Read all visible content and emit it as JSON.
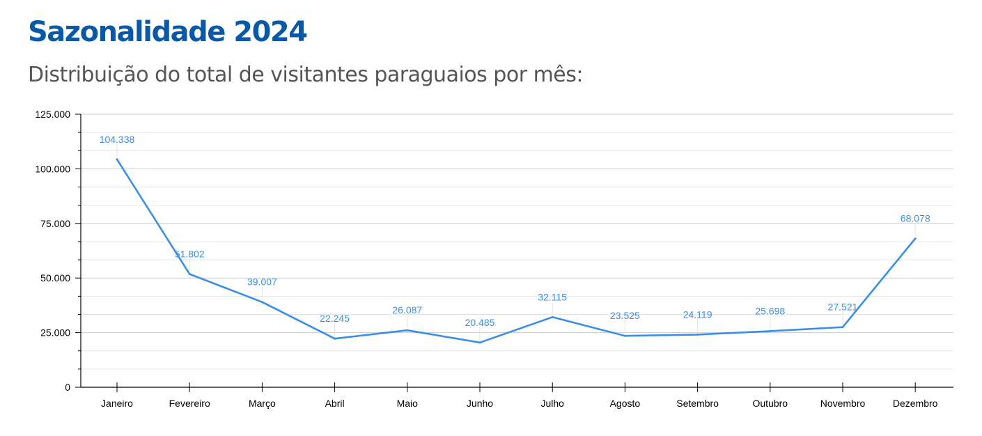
{
  "title": "Sazonalidade 2024",
  "subtitle": "Distribuição do total de visitantes paraguaios por mês:",
  "colors": {
    "title": "#0a58a8",
    "subtitle": "#555555",
    "line": "#3a8ee6",
    "label": "#3a8ee6",
    "axis": "#000000",
    "grid": "#cccccc",
    "minor_grid": "#e6e6e6"
  },
  "chart_data": {
    "type": "line",
    "categories": [
      "Janeiro",
      "Fevereiro",
      "Março",
      "Abril",
      "Maio",
      "Junho",
      "Julho",
      "Agosto",
      "Setembro",
      "Outubro",
      "Novembro",
      "Dezembro"
    ],
    "values": [
      104338,
      51802,
      39007,
      22245,
      26087,
      20485,
      32115,
      23525,
      24119,
      25698,
      27521,
      68078
    ],
    "value_labels": [
      "104.338",
      "51.802",
      "39.007",
      "22.245",
      "26.087",
      "20.485",
      "32.115",
      "23.525",
      "24.119",
      "25.698",
      "27.521",
      "68.078"
    ],
    "ylim": [
      0,
      125000
    ],
    "yticks": [
      0,
      25000,
      50000,
      75000,
      100000,
      125000
    ],
    "ytick_labels": [
      "0",
      "25.000",
      "50.000",
      "75.000",
      "100.000",
      "125.000"
    ],
    "minor_ytick_step": 8333.33,
    "grid": true,
    "legend": "none"
  }
}
